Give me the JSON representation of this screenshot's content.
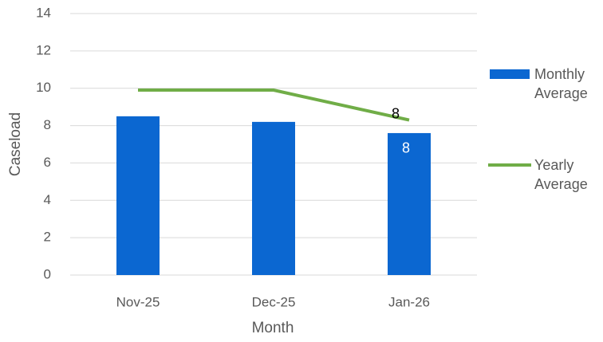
{
  "chart_data": {
    "type": "bar_line",
    "categories": [
      "Nov-25",
      "Dec-25",
      "Jan-26"
    ],
    "series": [
      {
        "name": "Monthly Average",
        "type": "bar",
        "color": "#0b67d1",
        "values": [
          8.5,
          8.2,
          7.6
        ],
        "value_labels": [
          null,
          null,
          "8"
        ]
      },
      {
        "name": "Yearly Average",
        "type": "line",
        "color": "#70ad47",
        "values": [
          9.9,
          9.9,
          8.3
        ],
        "value_labels": [
          null,
          null,
          "8"
        ]
      }
    ],
    "x_label": "Month",
    "y_label": "Caseload",
    "ylim": [
      0,
      14
    ],
    "yticks": [
      0,
      2,
      4,
      6,
      8,
      10,
      12,
      14
    ],
    "grid": true,
    "legend": "right"
  }
}
